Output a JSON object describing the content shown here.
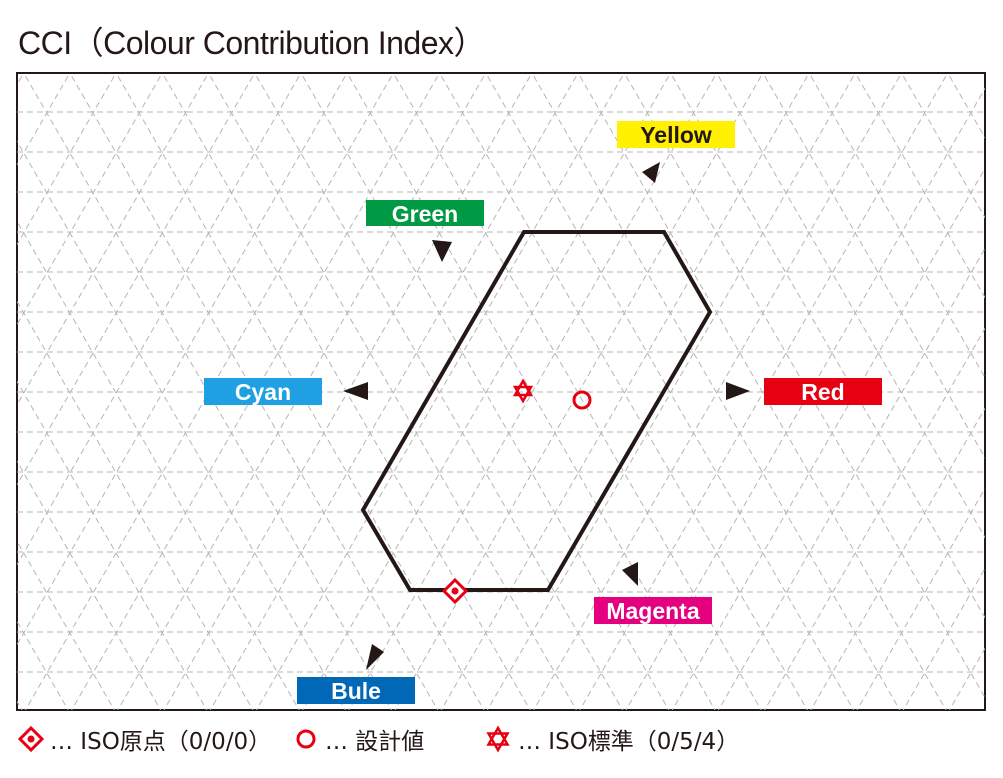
{
  "title": "CCI（Colour Contribution Index）",
  "labels": {
    "yellow": "Yellow",
    "green": "Green",
    "cyan": "Cyan",
    "red": "Red",
    "magenta": "Magenta",
    "blue": "Bule"
  },
  "colors": {
    "yellow": "#fff100",
    "green": "#009944",
    "cyan": "#1fa0e3",
    "red": "#e60012",
    "magenta": "#e4007f",
    "blue": "#0068b7",
    "marker": "#e60012",
    "outline": "#231815",
    "grid": "#b5b5b5"
  },
  "markers": {
    "iso_origin_icon": "diamond-marker",
    "design_value_icon": "circle-marker",
    "iso_standard_icon": "star-of-david-marker"
  },
  "legend": {
    "iso_origin": "… ISO原点（0/0/0）",
    "design_value": "… 設計値",
    "iso_standard": "… ISO標準（0/5/4）"
  }
}
